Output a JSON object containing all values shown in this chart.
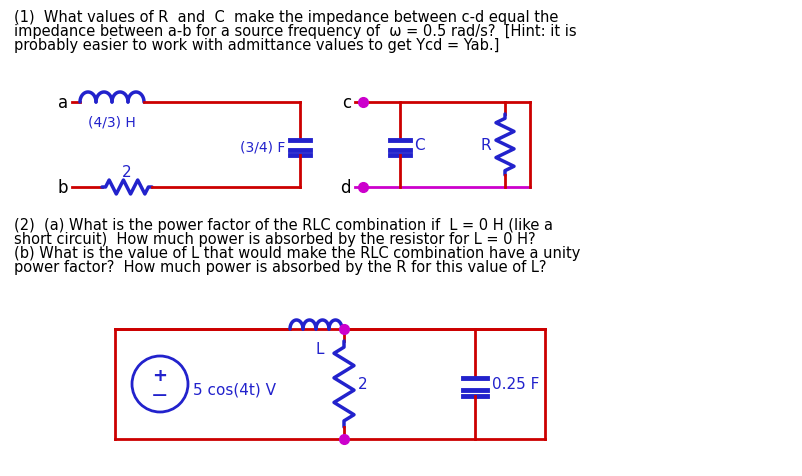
{
  "bg_color": "#ffffff",
  "text_color": "#000000",
  "red": "#cc0000",
  "blue": "#2222cc",
  "magenta": "#cc00cc",
  "lw": 2.0,
  "line1": "(1)  What values of R  and  C  make the impedance between c-d equal the",
  "line2": "impedance between a-b for a source frequency of  ω = 0.5 rad/s?  [Hint: it is",
  "line3": "probably easier to work with admittance values to get Ycd = Yab.]",
  "q2l1": "(2)  (a) What is the power factor of the RLC combination if  L = 0 H (like a",
  "q2l2": "short circuit)  How much power is absorbed by the resistor for L = 0 H?",
  "q2l3": "(b) What is the value of L that would make the RLC combination have a unity",
  "q2l4": "power factor?  How much power is absorbed by the R for this value of L?"
}
